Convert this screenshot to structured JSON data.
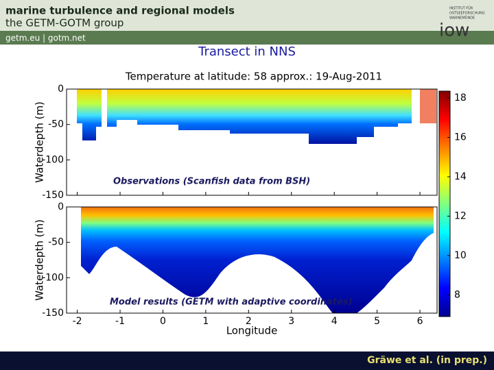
{
  "header": {
    "title": "marine turbulence and regional models",
    "subtitle": "the GETM-GOTM group",
    "links": "getm.eu  |  gotm.net",
    "logo_lines": [
      "INSTITUT FÜR",
      "OSTSEEFORSCHUNG",
      "WARNEMÜNDE"
    ],
    "logo": "iow"
  },
  "slide_title": "Transect in NNS",
  "chart_data": {
    "type": "heatmap",
    "title": "Temperature at latitude: 58  approx.: 19-Aug-2011",
    "xlabel": "Longitude",
    "xlim": [
      -2.25,
      6.4
    ],
    "xticks": [
      -2,
      -1,
      0,
      1,
      2,
      3,
      4,
      5,
      6
    ],
    "panels": [
      {
        "ylabel": "Waterdepth (m)",
        "annotation": "Observations (Scanfish data from BSH)",
        "ylim": [
          -150,
          0
        ],
        "yticks": [
          0,
          -50,
          -100,
          -150
        ]
      },
      {
        "ylabel": "Waterdepth (m)",
        "annotation": "Model results (GETM with adaptive coordinates)",
        "ylim": [
          -150,
          0
        ],
        "yticks": [
          0,
          -50,
          -100,
          -150
        ]
      }
    ],
    "colorbar": {
      "lim": [
        6.9,
        18.35
      ],
      "ticks": [
        8,
        10,
        12,
        14,
        16,
        18
      ]
    }
  },
  "footer": "Gräwe et al. (in prep.)"
}
